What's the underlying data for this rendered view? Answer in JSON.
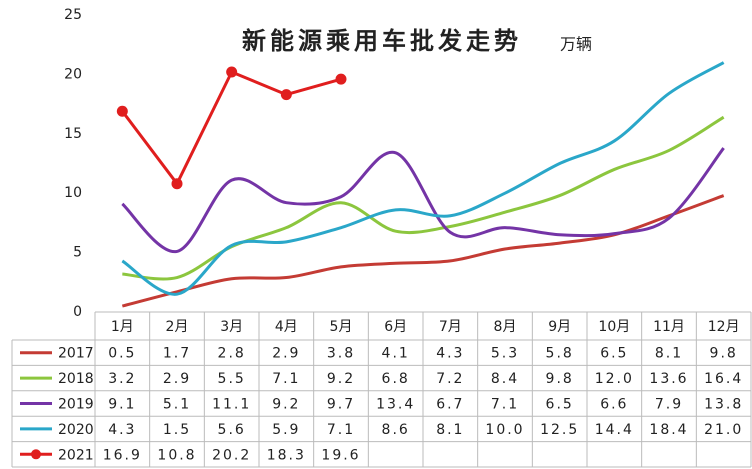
{
  "chart_data": {
    "type": "line",
    "title": "新能源乘用车批发走势",
    "unit": "万辆",
    "categories": [
      "1月",
      "2月",
      "3月",
      "4月",
      "5月",
      "6月",
      "7月",
      "8月",
      "9月",
      "10月",
      "11月",
      "12月"
    ],
    "ylim": [
      0,
      25
    ],
    "yticks": [
      0,
      5,
      10,
      15,
      20,
      25
    ],
    "series": [
      {
        "name": "2017",
        "color": "#c43b34",
        "smooth": true,
        "values": [
          0.5,
          1.7,
          2.8,
          2.9,
          3.8,
          4.1,
          4.3,
          5.3,
          5.8,
          6.5,
          8.1,
          9.8
        ],
        "value_labels": [
          "0.5",
          "1.7",
          "2.8",
          "2.9",
          "3.8",
          "4.1",
          "4.3",
          "5.3",
          "5.8",
          "6.5",
          "8.1",
          "9.8"
        ]
      },
      {
        "name": "2018",
        "color": "#8cc63e",
        "smooth": true,
        "values": [
          3.2,
          2.9,
          5.5,
          7.1,
          9.2,
          6.8,
          7.2,
          8.4,
          9.8,
          12.0,
          13.6,
          16.4
        ],
        "value_labels": [
          "3.2",
          "2.9",
          "5.5",
          "7.1",
          "9.2",
          "6.8",
          "7.2",
          "8.4",
          "9.8",
          "12.0",
          "13.6",
          "16.4"
        ]
      },
      {
        "name": "2019",
        "color": "#7434a6",
        "smooth": true,
        "values": [
          9.1,
          5.1,
          11.1,
          9.2,
          9.7,
          13.4,
          6.7,
          7.1,
          6.5,
          6.6,
          7.9,
          13.8
        ],
        "value_labels": [
          "9.1",
          "5.1",
          "11.1",
          "9.2",
          "9.7",
          "13.4",
          "6.7",
          "7.1",
          "6.5",
          "6.6",
          "7.9",
          "13.8"
        ]
      },
      {
        "name": "2020",
        "color": "#2aa7c9",
        "smooth": true,
        "values": [
          4.3,
          1.5,
          5.6,
          5.9,
          7.1,
          8.6,
          8.1,
          10.0,
          12.5,
          14.4,
          18.4,
          21.0
        ],
        "value_labels": [
          "4.3",
          "1.5",
          "5.6",
          "5.9",
          "7.1",
          "8.6",
          "8.1",
          "10.0",
          "12.5",
          "14.4",
          "18.4",
          "21.0"
        ]
      },
      {
        "name": "2021",
        "color": "#e01e1e",
        "smooth": false,
        "markers": true,
        "values": [
          16.9,
          10.8,
          20.2,
          18.3,
          19.6,
          null,
          null,
          null,
          null,
          null,
          null,
          null
        ],
        "value_labels": [
          "16.9",
          "10.8",
          "20.2",
          "18.3",
          "19.6",
          null,
          null,
          null,
          null,
          null,
          null,
          null
        ]
      }
    ]
  }
}
